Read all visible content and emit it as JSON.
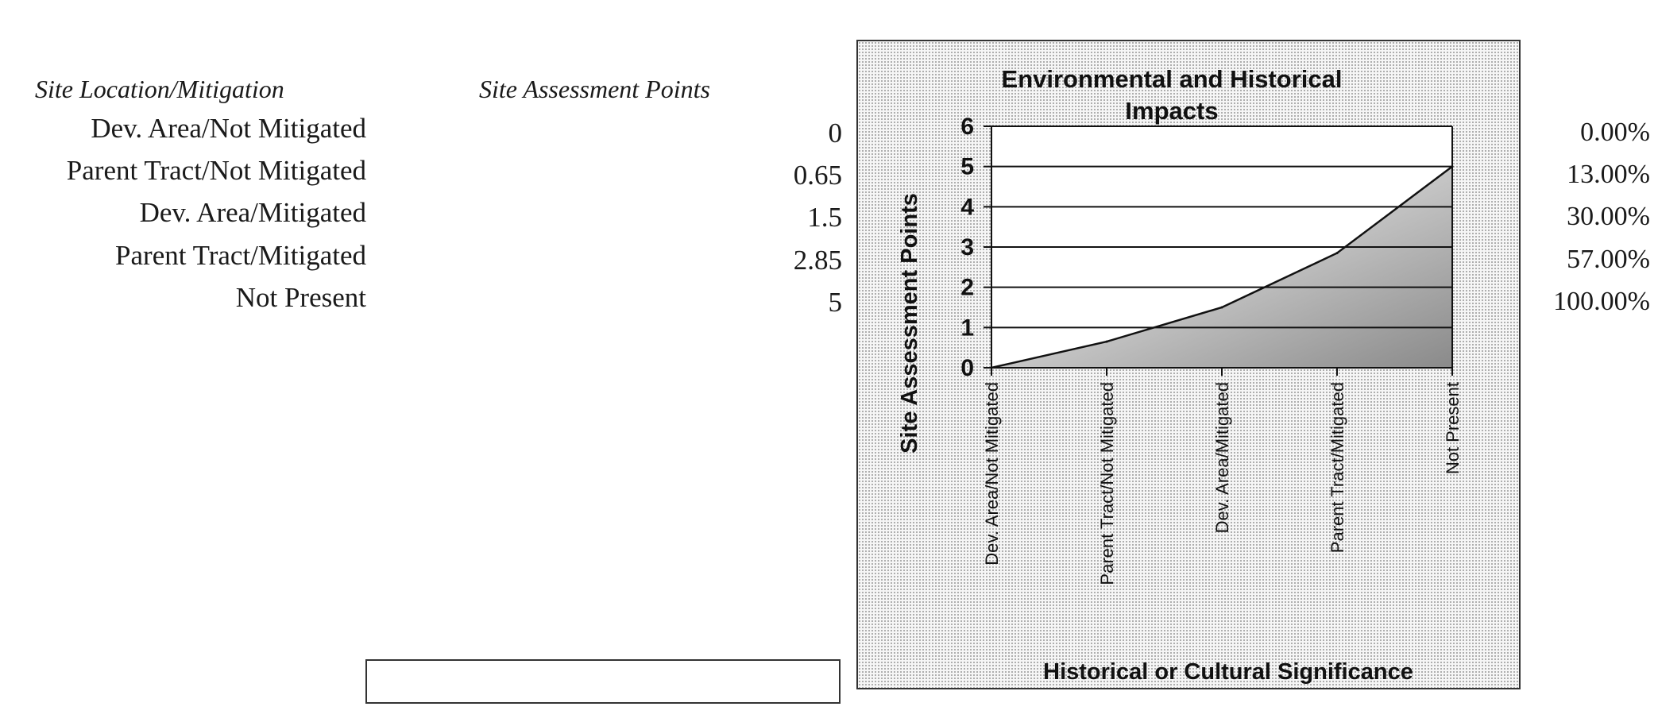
{
  "table": {
    "header_location": "Site Location/Mitigation",
    "header_points": "Site Assessment Points",
    "rows": [
      {
        "label": "Dev. Area/Not Mitigated",
        "points": "0",
        "percent": "0.00%"
      },
      {
        "label": "Parent Tract/Not Mitigated",
        "points": "0.65",
        "percent": "13.00%"
      },
      {
        "label": "Dev. Area/Mitigated",
        "points": "1.5",
        "percent": "30.00%"
      },
      {
        "label": "Parent Tract/Mitigated",
        "points": "2.85",
        "percent": "57.00%"
      },
      {
        "label": "Not Present",
        "points": "5",
        "percent": "100.00%"
      }
    ]
  },
  "chart_data": {
    "type": "area",
    "title_lines": [
      "Environmental and Historical",
      "Impacts"
    ],
    "xlabel": "Historical or Cultural Significance",
    "ylabel": "Site Assessment Points",
    "categories": [
      "Dev. Area/Not Mitigated",
      "Parent Tract/Not Mitigated",
      "Dev. Area/Mitigated",
      "Parent Tract/Mitigated",
      "Not Present"
    ],
    "values": [
      0,
      0.65,
      1.5,
      2.85,
      5
    ],
    "ylim": [
      0,
      6
    ],
    "yticks": [
      "0",
      "1",
      "2",
      "3",
      "4",
      "5",
      "6"
    ],
    "grid": true,
    "legend": "none",
    "colors": {
      "fill_dark": "#8a8a8a",
      "fill_light": "#f2f2f2",
      "line": "#111111",
      "gridline": "#111111"
    }
  }
}
